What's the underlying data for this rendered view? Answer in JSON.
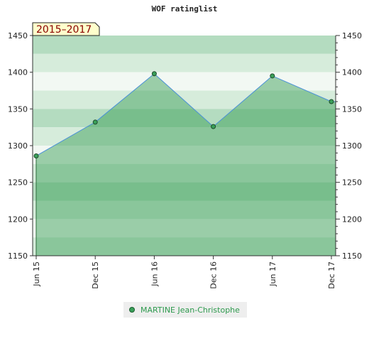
{
  "chart_data": {
    "type": "area",
    "title": "WOF ratinglist",
    "range_label": "2015–2017",
    "categories": [
      "Jun 15",
      "Dec 15",
      "Jun 16",
      "Dec 16",
      "Jun 17",
      "Dec 17"
    ],
    "series": [
      {
        "name": "MARTINE Jean-Christophe",
        "values": [
          1286,
          1332,
          1398,
          1326,
          1395,
          1360
        ]
      }
    ],
    "yticks": [
      1150,
      1200,
      1250,
      1300,
      1350,
      1400,
      1450
    ],
    "ylim": [
      1150,
      1450
    ],
    "grid": true,
    "legend": "bottom-center",
    "colors": {
      "line": "#4a90d9",
      "area": "#2e9a4e",
      "point": "#3aa05a",
      "band_light": "#f2f8f3",
      "band_mid": "#d6ecdb",
      "band_dark": "#b4dcc0",
      "range_bg": "#ffffcc"
    }
  }
}
